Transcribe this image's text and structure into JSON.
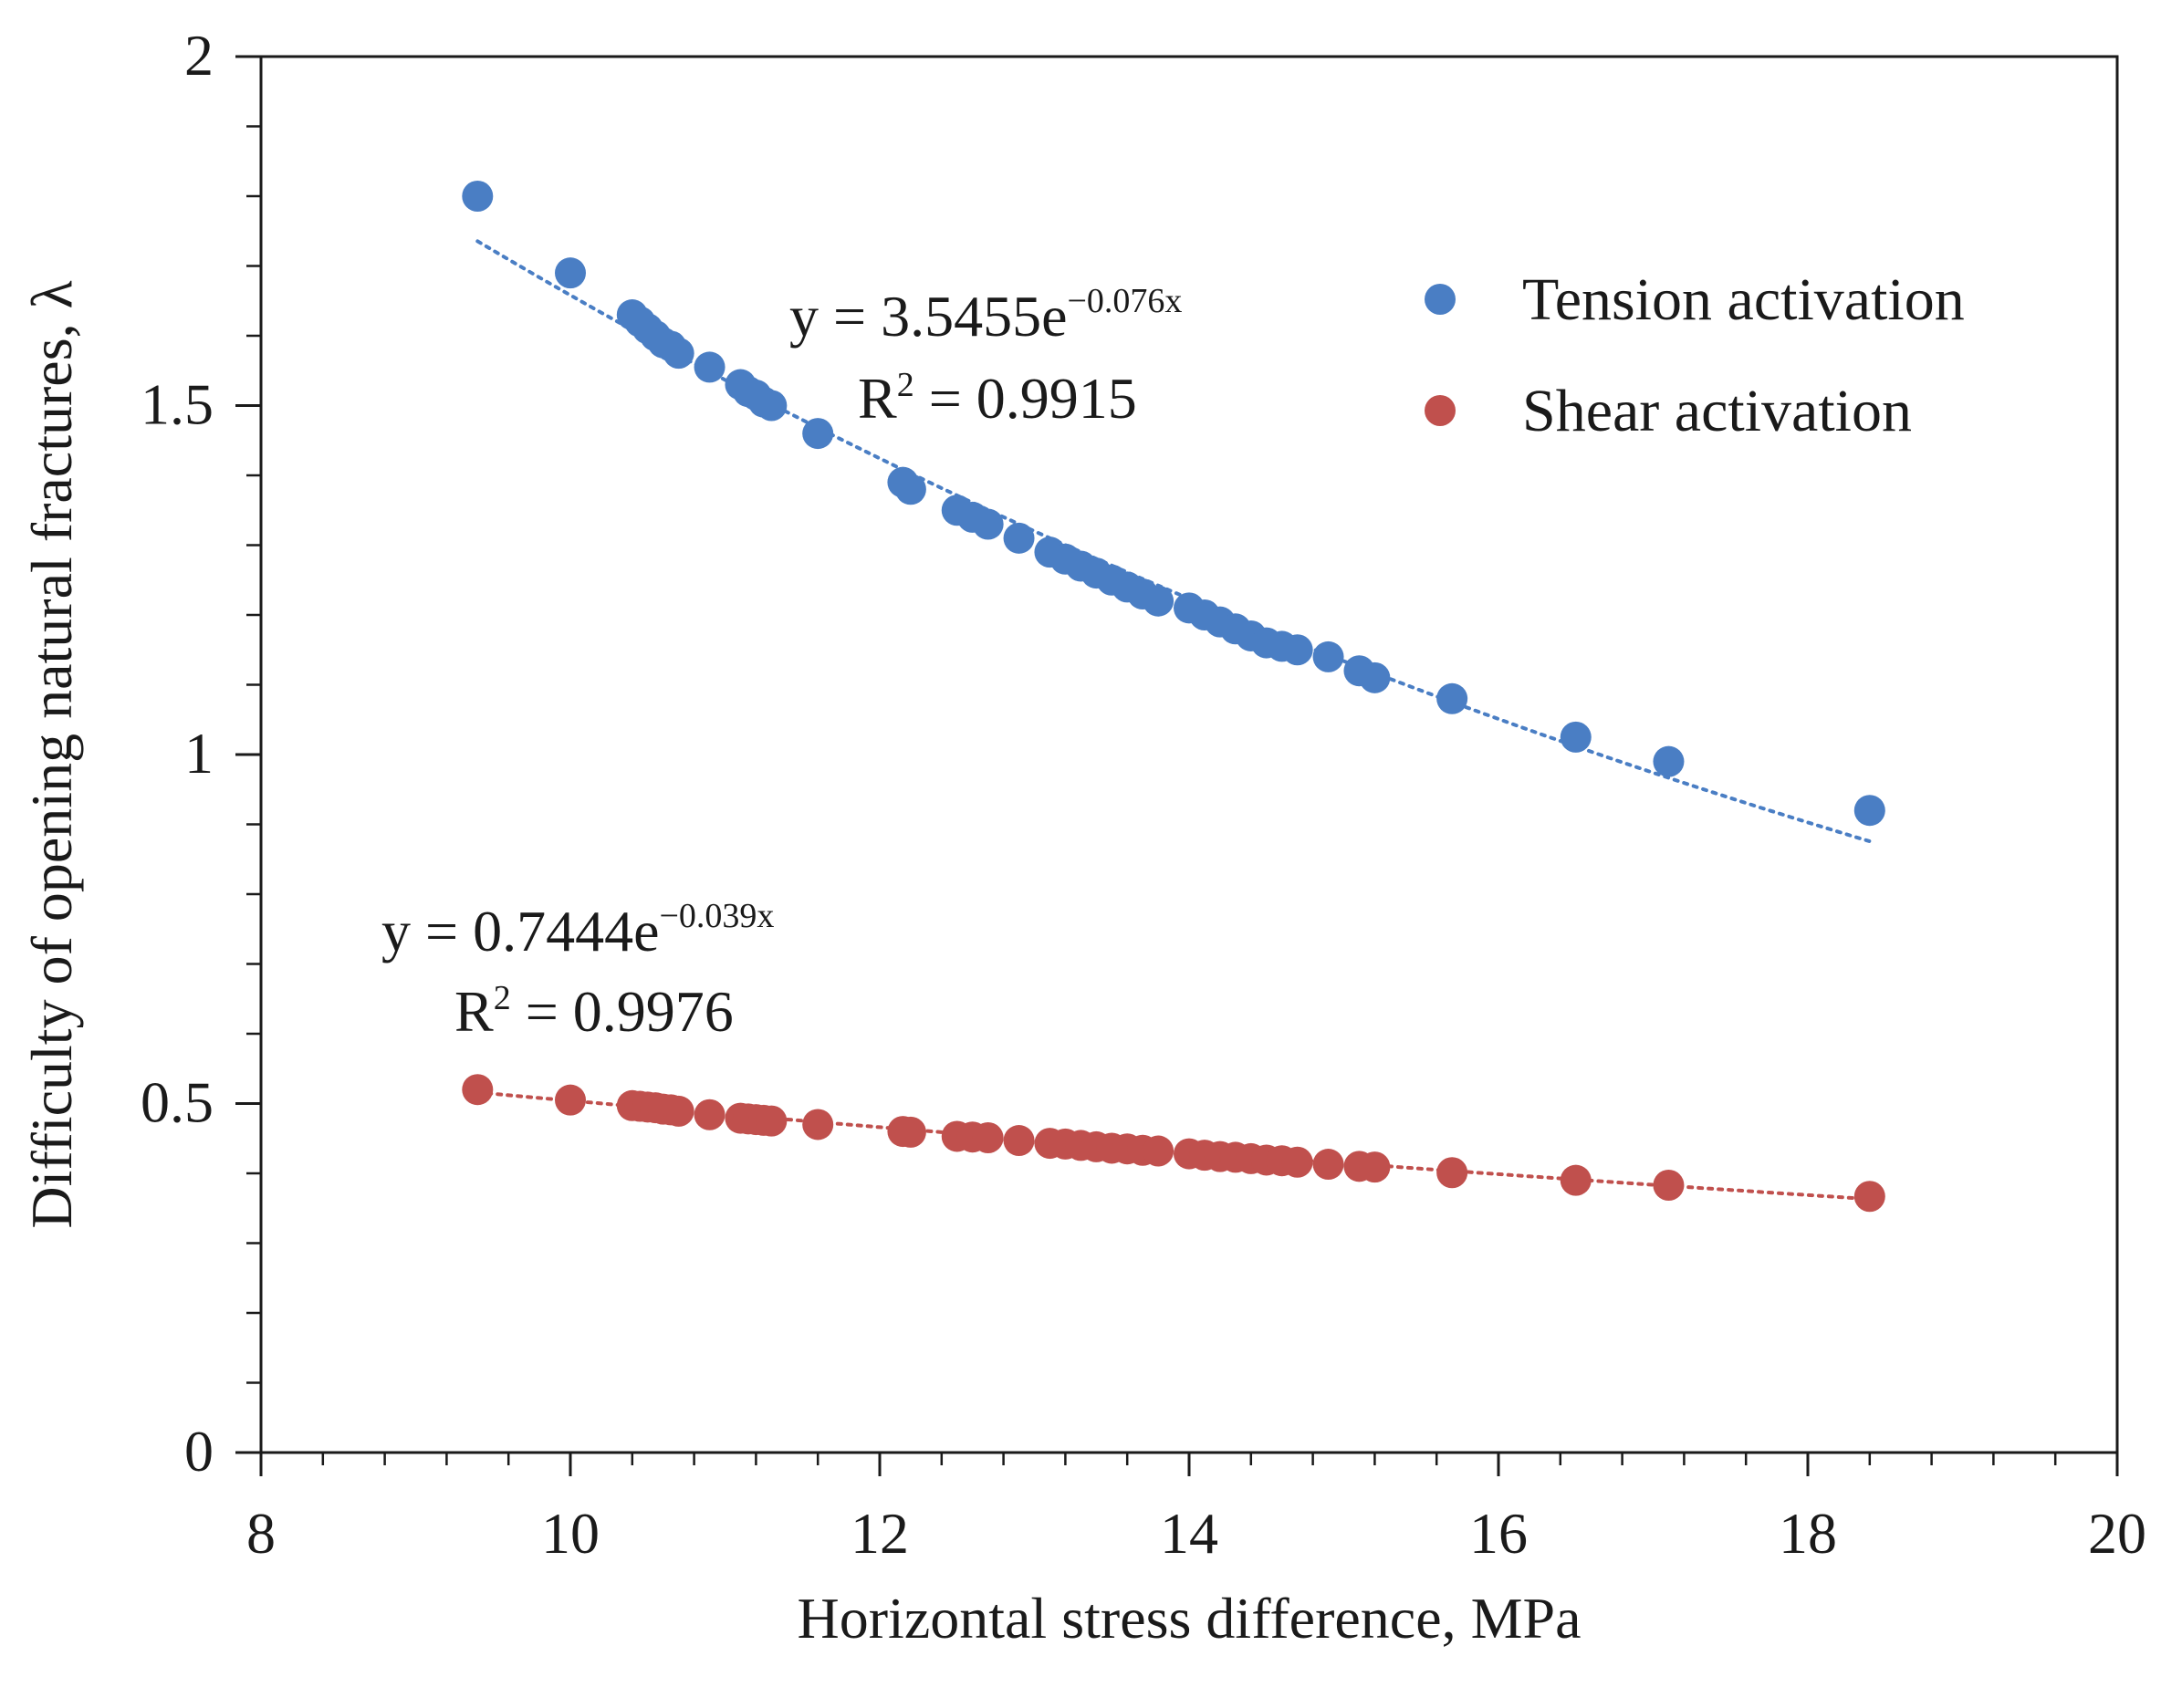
{
  "chart_data": {
    "type": "scatter",
    "title": "",
    "xlabel": "Horizontal stress difference, MPa",
    "ylabel": "Difficulty of opening natural fractures, λ",
    "xlim": [
      8,
      20
    ],
    "ylim": [
      0,
      2
    ],
    "x_major_ticks": [
      8,
      10,
      12,
      14,
      16,
      18,
      20
    ],
    "x_tick_labels": [
      "8",
      "10",
      "12",
      "14",
      "16",
      "18",
      "20"
    ],
    "y_major_ticks": [
      0,
      0.5,
      1,
      1.5,
      2
    ],
    "y_tick_labels": [
      "0",
      "0.5",
      "1",
      "1.5",
      "2"
    ],
    "x_minor_step": 0.4,
    "y_minor_step": 0.1,
    "grid": false,
    "legend_position": "top-right",
    "series": [
      {
        "name": "Tension activation",
        "color": "#4a7ec4",
        "x": [
          9.4,
          10.0,
          10.4,
          10.45,
          10.5,
          10.55,
          10.6,
          10.65,
          10.7,
          10.9,
          11.1,
          11.15,
          11.2,
          11.25,
          11.3,
          11.6,
          12.15,
          12.2,
          12.5,
          12.6,
          12.7,
          12.9,
          13.1,
          13.2,
          13.3,
          13.4,
          13.5,
          13.6,
          13.7,
          13.8,
          14.0,
          14.1,
          14.2,
          14.3,
          14.4,
          14.5,
          14.6,
          14.7,
          14.9,
          15.1,
          15.2,
          15.7,
          16.5,
          17.1,
          18.4
        ],
        "y": [
          1.8,
          1.69,
          1.63,
          1.62,
          1.61,
          1.6,
          1.59,
          1.585,
          1.575,
          1.555,
          1.53,
          1.52,
          1.515,
          1.505,
          1.5,
          1.46,
          1.39,
          1.38,
          1.35,
          1.34,
          1.33,
          1.31,
          1.29,
          1.28,
          1.27,
          1.26,
          1.25,
          1.24,
          1.23,
          1.22,
          1.21,
          1.2,
          1.19,
          1.18,
          1.17,
          1.16,
          1.155,
          1.15,
          1.14,
          1.12,
          1.11,
          1.08,
          1.025,
          0.99,
          0.92
        ],
        "trendline": {
          "form": "exponential",
          "a": 3.5455,
          "b": -0.076,
          "x_range": [
            9.4,
            18.4
          ]
        },
        "equation": {
          "prefix": "y = 3.5455e",
          "exponent": "−0.076x",
          "r2_label": "R",
          "r2_sup": "2",
          "r2_value": " = 0.9915"
        }
      },
      {
        "name": "Shear activation",
        "color": "#c0504d",
        "x": [
          9.4,
          10.0,
          10.4,
          10.45,
          10.5,
          10.55,
          10.6,
          10.65,
          10.7,
          10.9,
          11.1,
          11.15,
          11.2,
          11.25,
          11.3,
          11.6,
          12.15,
          12.2,
          12.5,
          12.6,
          12.7,
          12.9,
          13.1,
          13.2,
          13.3,
          13.4,
          13.5,
          13.6,
          13.7,
          13.8,
          14.0,
          14.1,
          14.2,
          14.3,
          14.4,
          14.5,
          14.6,
          14.7,
          14.9,
          15.1,
          15.2,
          15.7,
          16.5,
          17.1,
          18.4
        ],
        "y": [
          0.52,
          0.505,
          0.497,
          0.496,
          0.495,
          0.494,
          0.492,
          0.491,
          0.489,
          0.484,
          0.479,
          0.478,
          0.477,
          0.476,
          0.475,
          0.47,
          0.46,
          0.459,
          0.453,
          0.452,
          0.451,
          0.447,
          0.443,
          0.442,
          0.44,
          0.438,
          0.436,
          0.435,
          0.433,
          0.432,
          0.428,
          0.426,
          0.424,
          0.423,
          0.421,
          0.419,
          0.418,
          0.416,
          0.413,
          0.41,
          0.409,
          0.401,
          0.39,
          0.383,
          0.367
        ],
        "trendline": {
          "form": "exponential",
          "a": 0.7444,
          "b": -0.039,
          "x_range": [
            9.4,
            18.4
          ]
        },
        "equation": {
          "prefix": "y = 0.7444e",
          "exponent": "−0.039x",
          "r2_label": "R",
          "r2_sup": "2",
          "r2_value": " = 0.9976"
        }
      }
    ]
  }
}
